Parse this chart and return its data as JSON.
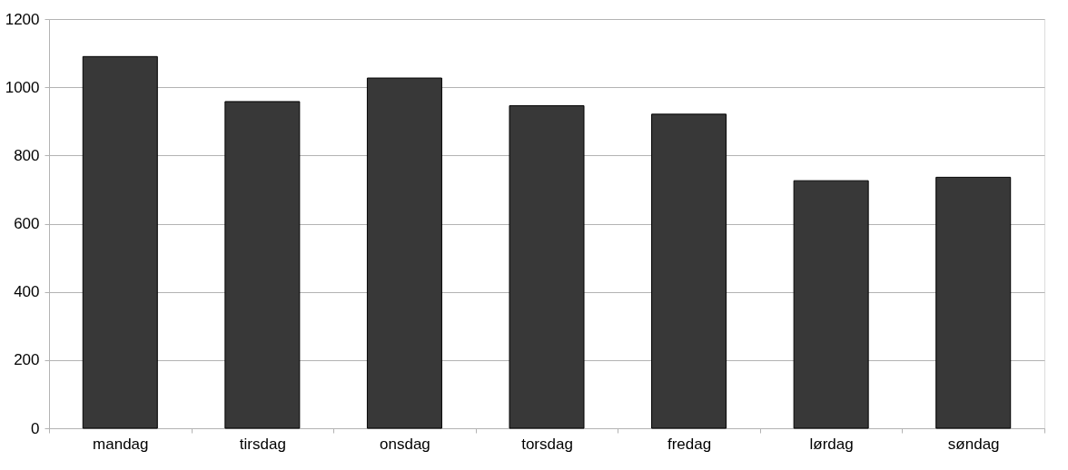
{
  "chart_data": {
    "type": "bar",
    "categories": [
      "mandag",
      "tirsdag",
      "onsdag",
      "torsdag",
      "fredag",
      "lørdag",
      "søndag"
    ],
    "values": [
      1090,
      958,
      1027,
      946,
      921,
      726,
      736
    ],
    "color": "#383838",
    "ylim": [
      0,
      1200
    ],
    "yticks": [
      0,
      200,
      400,
      600,
      800,
      1000,
      1200
    ],
    "grid": "y"
  }
}
